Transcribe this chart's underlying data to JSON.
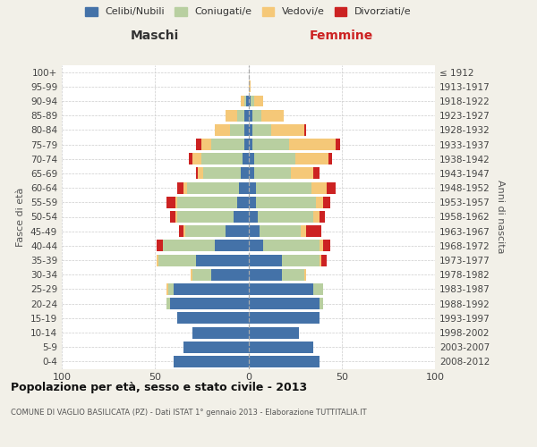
{
  "age_groups": [
    "0-4",
    "5-9",
    "10-14",
    "15-19",
    "20-24",
    "25-29",
    "30-34",
    "35-39",
    "40-44",
    "45-49",
    "50-54",
    "55-59",
    "60-64",
    "65-69",
    "70-74",
    "75-79",
    "80-84",
    "85-89",
    "90-94",
    "95-99",
    "100+"
  ],
  "birth_years": [
    "2008-2012",
    "2003-2007",
    "1998-2002",
    "1993-1997",
    "1988-1992",
    "1983-1987",
    "1978-1982",
    "1973-1977",
    "1968-1972",
    "1963-1967",
    "1958-1962",
    "1953-1957",
    "1948-1952",
    "1943-1947",
    "1938-1942",
    "1933-1937",
    "1928-1932",
    "1923-1927",
    "1918-1922",
    "1913-1917",
    "≤ 1912"
  ],
  "maschi": {
    "celibi": [
      40,
      35,
      30,
      38,
      42,
      40,
      20,
      28,
      18,
      12,
      8,
      6,
      5,
      4,
      3,
      2,
      2,
      2,
      1,
      0,
      0
    ],
    "coniugati": [
      0,
      0,
      0,
      0,
      2,
      3,
      10,
      20,
      28,
      22,
      30,
      32,
      28,
      20,
      22,
      18,
      8,
      4,
      1,
      0,
      0
    ],
    "vedovi": [
      0,
      0,
      0,
      0,
      0,
      1,
      1,
      1,
      0,
      1,
      1,
      1,
      2,
      3,
      5,
      5,
      8,
      6,
      2,
      0,
      0
    ],
    "divorziati": [
      0,
      0,
      0,
      0,
      0,
      0,
      0,
      0,
      3,
      2,
      3,
      5,
      3,
      1,
      2,
      3,
      0,
      0,
      0,
      0,
      0
    ]
  },
  "femmine": {
    "nubili": [
      38,
      35,
      27,
      38,
      38,
      35,
      18,
      18,
      8,
      6,
      5,
      4,
      4,
      3,
      3,
      2,
      2,
      2,
      1,
      0,
      0
    ],
    "coniugate": [
      0,
      0,
      0,
      0,
      2,
      5,
      12,
      20,
      30,
      22,
      30,
      32,
      30,
      20,
      22,
      20,
      10,
      5,
      2,
      0,
      0
    ],
    "vedove": [
      0,
      0,
      0,
      0,
      0,
      0,
      1,
      1,
      2,
      3,
      3,
      4,
      8,
      12,
      18,
      25,
      18,
      12,
      5,
      1,
      0
    ],
    "divorziate": [
      0,
      0,
      0,
      0,
      0,
      0,
      0,
      3,
      4,
      8,
      3,
      4,
      5,
      3,
      2,
      2,
      1,
      0,
      0,
      0,
      0
    ]
  },
  "colors": {
    "celibi": "#4472a8",
    "coniugati": "#b8cfa0",
    "vedovi": "#f5c878",
    "divorziati": "#cc2222"
  },
  "title": "Popolazione per età, sesso e stato civile - 2013",
  "subtitle": "COMUNE DI VAGLIO BASILICATA (PZ) - Dati ISTAT 1° gennaio 2013 - Elaborazione TUTTITALIA.IT",
  "xlabel_left": "Maschi",
  "xlabel_right": "Femmine",
  "ylabel_left": "Fasce di età",
  "ylabel_right": "Anni di nascita",
  "xlim": 100,
  "background_color": "#f2f0e8",
  "plot_bg": "#ffffff",
  "legend_labels": [
    "Celibi/Nubili",
    "Coniugati/e",
    "Vedovi/e",
    "Divorziati/e"
  ]
}
